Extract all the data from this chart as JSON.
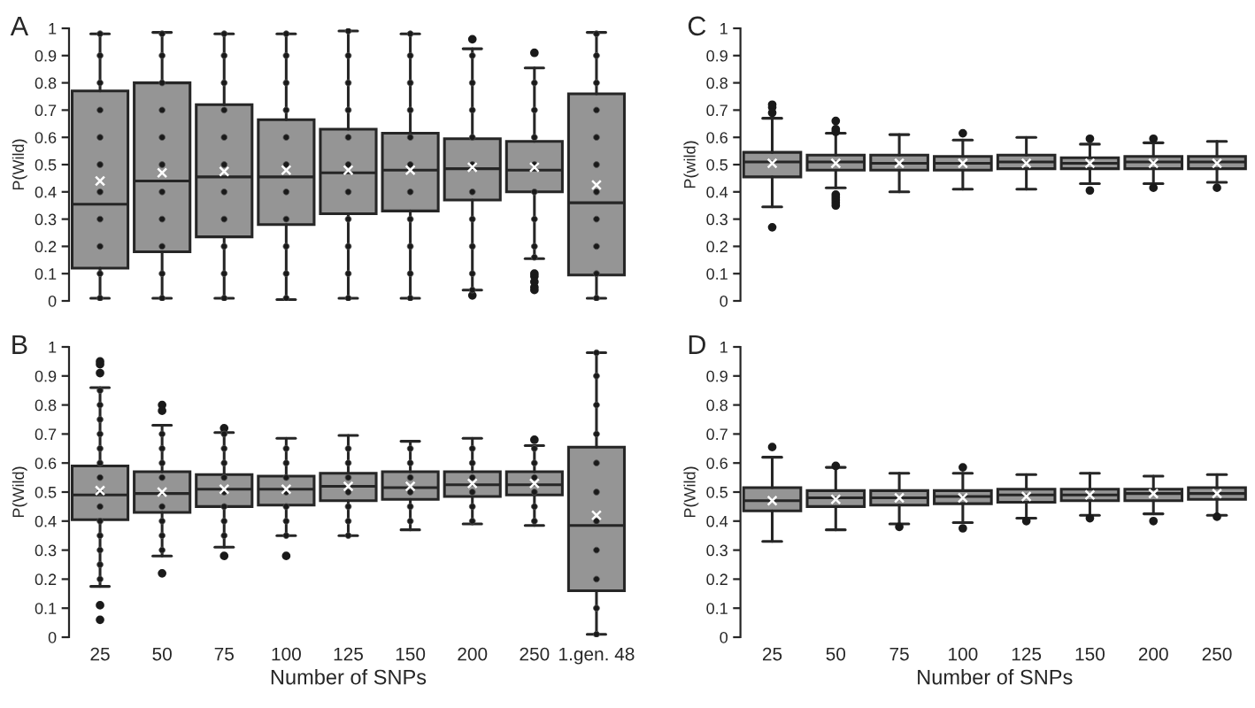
{
  "chart_data": [
    {
      "type": "box",
      "title": "A",
      "ylabel": "P(Wild)",
      "categories": [
        "25",
        "50",
        "75",
        "100",
        "125",
        "150",
        "200",
        "250",
        "1.gen. 48"
      ],
      "ylim": [
        0,
        1
      ],
      "yticks": [
        0,
        0.1,
        0.2,
        0.3,
        0.4,
        0.5,
        0.6,
        0.7,
        0.8,
        0.9,
        1
      ],
      "tick_labels": "y",
      "grid": false,
      "legend": false,
      "color": "#959595",
      "boxes": [
        {
          "low": 0.01,
          "q1": 0.12,
          "median": 0.355,
          "q3": 0.77,
          "high": 0.98,
          "mean": 0.44
        },
        {
          "low": 0.01,
          "q1": 0.18,
          "median": 0.44,
          "q3": 0.8,
          "high": 0.985,
          "mean": 0.47
        },
        {
          "low": 0.01,
          "q1": 0.235,
          "median": 0.455,
          "q3": 0.72,
          "high": 0.98,
          "mean": 0.475
        },
        {
          "low": 0.005,
          "q1": 0.28,
          "median": 0.455,
          "q3": 0.665,
          "high": 0.98,
          "mean": 0.48
        },
        {
          "low": 0.01,
          "q1": 0.32,
          "median": 0.47,
          "q3": 0.63,
          "high": 0.99,
          "mean": 0.48
        },
        {
          "low": 0.01,
          "q1": 0.33,
          "median": 0.48,
          "q3": 0.615,
          "high": 0.98,
          "mean": 0.48
        },
        {
          "low": 0.04,
          "q1": 0.37,
          "median": 0.485,
          "q3": 0.595,
          "high": 0.925,
          "mean": 0.49,
          "outliers": [
            0.96,
            0.02
          ]
        },
        {
          "low": 0.155,
          "q1": 0.4,
          "median": 0.48,
          "q3": 0.585,
          "high": 0.855,
          "mean": 0.49,
          "outliers": [
            0.91,
            0.1,
            0.09,
            0.07,
            0.05,
            0.04
          ]
        },
        {
          "low": 0.01,
          "q1": 0.095,
          "median": 0.36,
          "q3": 0.76,
          "high": 0.985,
          "mean": 0.425
        }
      ],
      "series": [
        {
          "type": "scatter",
          "color": "#1a1a1a",
          "marker": "circle",
          "x": [
            "25",
            "25",
            "25",
            "25",
            "25",
            "25",
            "25",
            "25",
            "25",
            "25",
            "25",
            "50",
            "50",
            "50",
            "50",
            "50",
            "50",
            "50",
            "50",
            "50",
            "50",
            "50",
            "75",
            "75",
            "75",
            "75",
            "75",
            "75",
            "75",
            "75",
            "75",
            "75",
            "75",
            "100",
            "100",
            "100",
            "100",
            "100",
            "100",
            "100",
            "100",
            "100",
            "100",
            "100",
            "125",
            "125",
            "125",
            "125",
            "125",
            "125",
            "125",
            "125",
            "125",
            "125",
            "125",
            "150",
            "150",
            "150",
            "150",
            "150",
            "150",
            "150",
            "150",
            "150",
            "150",
            "150",
            "200",
            "200",
            "200",
            "200",
            "200",
            "200",
            "200",
            "200",
            "200",
            "200",
            "250",
            "250",
            "250",
            "250",
            "250",
            "250",
            "250",
            "250",
            "1.gen. 48",
            "1.gen. 48",
            "1.gen. 48",
            "1.gen. 48",
            "1.gen. 48",
            "1.gen. 48",
            "1.gen. 48",
            "1.gen. 48",
            "1.gen. 48",
            "1.gen. 48",
            "1.gen. 48"
          ],
          "values": [
            0.01,
            0.1,
            0.2,
            0.3,
            0.4,
            0.5,
            0.6,
            0.7,
            0.8,
            0.9,
            0.98,
            0.01,
            0.1,
            0.2,
            0.3,
            0.4,
            0.5,
            0.6,
            0.7,
            0.8,
            0.9,
            0.98,
            0.01,
            0.1,
            0.2,
            0.3,
            0.4,
            0.5,
            0.6,
            0.7,
            0.8,
            0.9,
            0.98,
            0.01,
            0.1,
            0.2,
            0.3,
            0.4,
            0.5,
            0.6,
            0.7,
            0.8,
            0.9,
            0.98,
            0.01,
            0.1,
            0.2,
            0.3,
            0.4,
            0.5,
            0.6,
            0.7,
            0.8,
            0.9,
            0.99,
            0.01,
            0.1,
            0.2,
            0.3,
            0.4,
            0.5,
            0.6,
            0.7,
            0.8,
            0.9,
            0.98,
            0.04,
            0.1,
            0.2,
            0.3,
            0.4,
            0.5,
            0.6,
            0.7,
            0.8,
            0.9,
            0.16,
            0.2,
            0.3,
            0.4,
            0.5,
            0.6,
            0.7,
            0.8,
            0.01,
            0.1,
            0.2,
            0.3,
            0.4,
            0.5,
            0.6,
            0.7,
            0.8,
            0.9,
            0.98
          ]
        }
      ]
    },
    {
      "type": "box",
      "title": "B",
      "ylabel": "P(Wild)",
      "xlabel": "Number of SNPs",
      "categories": [
        "25",
        "50",
        "75",
        "100",
        "125",
        "150",
        "200",
        "250",
        "1.gen. 48"
      ],
      "ylim": [
        0,
        1
      ],
      "yticks": [
        0,
        0.1,
        0.2,
        0.3,
        0.4,
        0.5,
        0.6,
        0.7,
        0.8,
        0.9,
        1
      ],
      "grid": false,
      "legend": false,
      "color": "#959595",
      "boxes": [
        {
          "low": 0.175,
          "q1": 0.405,
          "median": 0.49,
          "q3": 0.59,
          "high": 0.86,
          "mean": 0.505,
          "outliers": [
            0.95,
            0.94,
            0.91,
            0.11,
            0.06
          ]
        },
        {
          "low": 0.28,
          "q1": 0.43,
          "median": 0.495,
          "q3": 0.57,
          "high": 0.73,
          "mean": 0.5,
          "outliers": [
            0.8,
            0.78,
            0.22
          ]
        },
        {
          "low": 0.31,
          "q1": 0.45,
          "median": 0.51,
          "q3": 0.56,
          "high": 0.705,
          "mean": 0.51,
          "outliers": [
            0.72,
            0.28
          ]
        },
        {
          "low": 0.35,
          "q1": 0.455,
          "median": 0.51,
          "q3": 0.555,
          "high": 0.685,
          "mean": 0.51,
          "outliers": [
            0.28
          ]
        },
        {
          "low": 0.35,
          "q1": 0.47,
          "median": 0.52,
          "q3": 0.565,
          "high": 0.695,
          "mean": 0.52
        },
        {
          "low": 0.37,
          "q1": 0.475,
          "median": 0.515,
          "q3": 0.57,
          "high": 0.675,
          "mean": 0.52
        },
        {
          "low": 0.39,
          "q1": 0.485,
          "median": 0.525,
          "q3": 0.57,
          "high": 0.685,
          "mean": 0.53
        },
        {
          "low": 0.385,
          "q1": 0.49,
          "median": 0.525,
          "q3": 0.57,
          "high": 0.66,
          "mean": 0.53,
          "outliers": [
            0.68
          ]
        },
        {
          "low": 0.01,
          "q1": 0.16,
          "median": 0.385,
          "q3": 0.655,
          "high": 0.98,
          "mean": 0.42
        }
      ],
      "series": [
        {
          "type": "scatter",
          "color": "#1a1a1a",
          "marker": "circle",
          "x": [
            "25",
            "25",
            "25",
            "25",
            "25",
            "25",
            "25",
            "25",
            "25",
            "25",
            "25",
            "25",
            "25",
            "25",
            "50",
            "50",
            "50",
            "50",
            "50",
            "50",
            "50",
            "50",
            "75",
            "75",
            "75",
            "75",
            "75",
            "75",
            "75",
            "75",
            "100",
            "100",
            "100",
            "100",
            "100",
            "100",
            "100",
            "125",
            "125",
            "125",
            "125",
            "125",
            "125",
            "125",
            "150",
            "150",
            "150",
            "150",
            "150",
            "150",
            "200",
            "200",
            "200",
            "200",
            "200",
            "200",
            "250",
            "250",
            "250",
            "250",
            "250",
            "250",
            "1.gen. 48",
            "1.gen. 48",
            "1.gen. 48",
            "1.gen. 48",
            "1.gen. 48",
            "1.gen. 48",
            "1.gen. 48",
            "1.gen. 48",
            "1.gen. 48",
            "1.gen. 48",
            "1.gen. 48"
          ],
          "values": [
            0.2,
            0.25,
            0.3,
            0.35,
            0.4,
            0.45,
            0.5,
            0.55,
            0.6,
            0.65,
            0.7,
            0.75,
            0.8,
            0.85,
            0.3,
            0.35,
            0.4,
            0.45,
            0.55,
            0.6,
            0.65,
            0.7,
            0.35,
            0.4,
            0.45,
            0.5,
            0.55,
            0.6,
            0.65,
            0.7,
            0.35,
            0.4,
            0.45,
            0.5,
            0.55,
            0.6,
            0.65,
            0.35,
            0.4,
            0.45,
            0.5,
            0.55,
            0.6,
            0.65,
            0.4,
            0.45,
            0.5,
            0.55,
            0.6,
            0.65,
            0.4,
            0.45,
            0.5,
            0.55,
            0.6,
            0.65,
            0.4,
            0.45,
            0.5,
            0.55,
            0.6,
            0.65,
            0.01,
            0.1,
            0.2,
            0.3,
            0.4,
            0.5,
            0.6,
            0.7,
            0.8,
            0.9,
            0.98
          ]
        }
      ]
    },
    {
      "type": "box",
      "title": "C",
      "ylabel": "P(wild)",
      "categories": [
        "25",
        "50",
        "75",
        "100",
        "125",
        "150",
        "200",
        "250"
      ],
      "ylim": [
        0,
        1
      ],
      "yticks": [
        0,
        0.1,
        0.2,
        0.3,
        0.4,
        0.5,
        0.6,
        0.7,
        0.8,
        0.9,
        1
      ],
      "tick_labels": "y",
      "grid": false,
      "legend": false,
      "color": "#959595",
      "boxes": [
        {
          "low": 0.345,
          "q1": 0.455,
          "median": 0.51,
          "q3": 0.545,
          "high": 0.67,
          "mean": 0.505,
          "outliers": [
            0.72,
            0.71,
            0.69,
            0.27
          ]
        },
        {
          "low": 0.415,
          "q1": 0.48,
          "median": 0.51,
          "q3": 0.535,
          "high": 0.615,
          "mean": 0.505,
          "outliers": [
            0.66,
            0.63,
            0.62,
            0.39,
            0.38,
            0.37,
            0.36,
            0.35
          ]
        },
        {
          "low": 0.4,
          "q1": 0.48,
          "median": 0.505,
          "q3": 0.535,
          "high": 0.61,
          "mean": 0.505
        },
        {
          "low": 0.41,
          "q1": 0.48,
          "median": 0.505,
          "q3": 0.53,
          "high": 0.59,
          "mean": 0.505,
          "outliers": [
            0.615
          ]
        },
        {
          "low": 0.41,
          "q1": 0.485,
          "median": 0.51,
          "q3": 0.535,
          "high": 0.6,
          "mean": 0.505
        },
        {
          "low": 0.43,
          "q1": 0.485,
          "median": 0.505,
          "q3": 0.525,
          "high": 0.575,
          "mean": 0.505,
          "outliers": [
            0.595,
            0.405
          ]
        },
        {
          "low": 0.43,
          "q1": 0.485,
          "median": 0.51,
          "q3": 0.53,
          "high": 0.58,
          "mean": 0.505,
          "outliers": [
            0.595,
            0.415
          ]
        },
        {
          "low": 0.435,
          "q1": 0.485,
          "median": 0.51,
          "q3": 0.53,
          "high": 0.585,
          "mean": 0.505,
          "outliers": [
            0.415
          ]
        }
      ]
    },
    {
      "type": "box",
      "title": "D",
      "ylabel": "P(Wild)",
      "xlabel": "Number of SNPs",
      "categories": [
        "25",
        "50",
        "75",
        "100",
        "125",
        "150",
        "200",
        "250"
      ],
      "ylim": [
        0,
        1
      ],
      "yticks": [
        0,
        0.1,
        0.2,
        0.3,
        0.4,
        0.5,
        0.6,
        0.7,
        0.8,
        0.9,
        1
      ],
      "grid": false,
      "legend": false,
      "color": "#959595",
      "boxes": [
        {
          "low": 0.33,
          "q1": 0.435,
          "median": 0.47,
          "q3": 0.515,
          "high": 0.62,
          "mean": 0.47,
          "outliers": [
            0.655
          ]
        },
        {
          "low": 0.37,
          "q1": 0.45,
          "median": 0.48,
          "q3": 0.505,
          "high": 0.585,
          "mean": 0.475,
          "outliers": [
            0.59
          ]
        },
        {
          "low": 0.39,
          "q1": 0.455,
          "median": 0.48,
          "q3": 0.505,
          "high": 0.565,
          "mean": 0.48,
          "outliers": [
            0.38
          ]
        },
        {
          "low": 0.395,
          "q1": 0.46,
          "median": 0.485,
          "q3": 0.505,
          "high": 0.565,
          "mean": 0.48,
          "outliers": [
            0.585,
            0.375
          ]
        },
        {
          "low": 0.41,
          "q1": 0.465,
          "median": 0.49,
          "q3": 0.51,
          "high": 0.56,
          "mean": 0.485,
          "outliers": [
            0.4
          ]
        },
        {
          "low": 0.42,
          "q1": 0.47,
          "median": 0.49,
          "q3": 0.51,
          "high": 0.565,
          "mean": 0.49,
          "outliers": [
            0.41
          ]
        },
        {
          "low": 0.425,
          "q1": 0.47,
          "median": 0.495,
          "q3": 0.51,
          "high": 0.555,
          "mean": 0.495,
          "outliers": [
            0.4
          ]
        },
        {
          "low": 0.42,
          "q1": 0.475,
          "median": 0.495,
          "q3": 0.515,
          "high": 0.56,
          "mean": 0.495,
          "outliers": [
            0.415
          ]
        }
      ]
    }
  ]
}
